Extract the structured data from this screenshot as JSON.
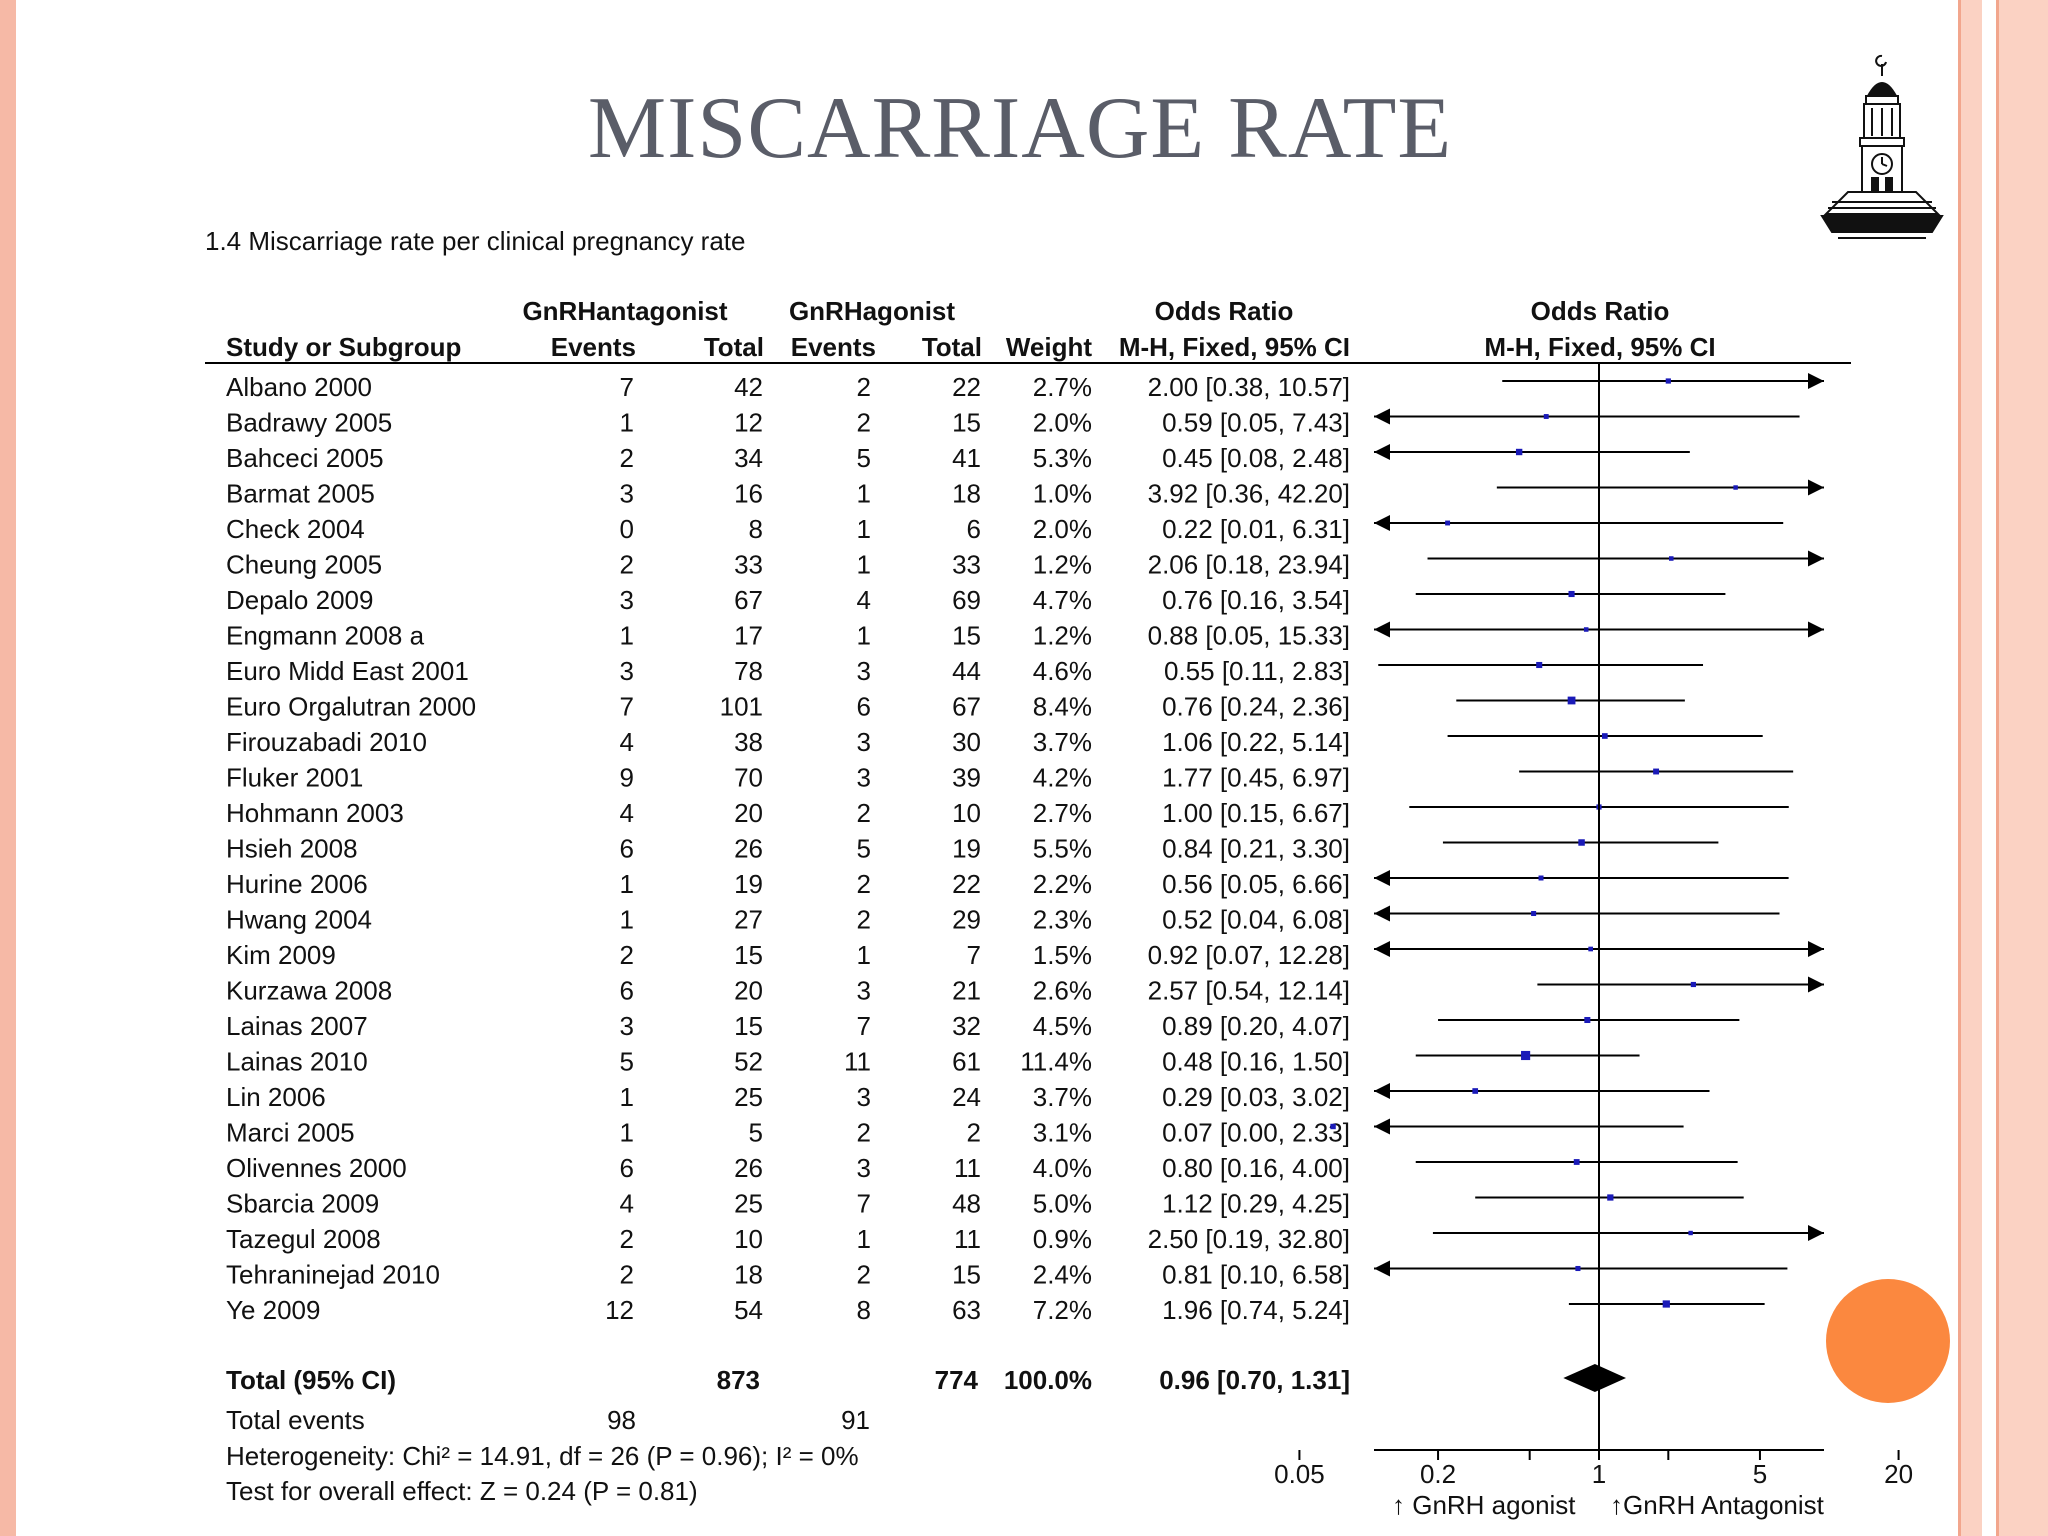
{
  "slide": {
    "title": "MISCARRIAGE RATE",
    "logo_icon": "clock-tower-icon",
    "accent_colors": {
      "left_band": "#f6b9a6",
      "right_band": "#fbd2c3",
      "dot": "#fb883f",
      "title": "#5a5d68"
    }
  },
  "chart_data": {
    "type": "forest",
    "title": "1.4 Miscarriage rate per clinical pregnancy rate",
    "headers": {
      "group1": "GnRHantagonist",
      "group2": "GnRHagonist",
      "study": "Study or Subgroup",
      "events": "Events",
      "total": "Total",
      "weight": "Weight",
      "or_title": "Odds Ratio",
      "or_method": "M-H, Fixed, 95% CI"
    },
    "studies": [
      {
        "name": "Albano 2000",
        "e1": "7",
        "t1": "42",
        "e2": "2",
        "t2": "22",
        "weight": "2.7%",
        "ci_text": "2.00 [0.38, 10.57]",
        "or": 2.0,
        "lo": 0.38,
        "hi": 10.57
      },
      {
        "name": "Badrawy 2005",
        "e1": "1",
        "t1": "12",
        "e2": "2",
        "t2": "15",
        "weight": "2.0%",
        "ci_text": "0.59 [0.05, 7.43]",
        "or": 0.59,
        "lo": 0.05,
        "hi": 7.43
      },
      {
        "name": "Bahceci 2005",
        "e1": "2",
        "t1": "34",
        "e2": "5",
        "t2": "41",
        "weight": "5.3%",
        "ci_text": "0.45 [0.08, 2.48]",
        "or": 0.45,
        "lo": 0.08,
        "hi": 2.48
      },
      {
        "name": "Barmat 2005",
        "e1": "3",
        "t1": "16",
        "e2": "1",
        "t2": "18",
        "weight": "1.0%",
        "ci_text": "3.92 [0.36, 42.20]",
        "or": 3.92,
        "lo": 0.36,
        "hi": 42.2
      },
      {
        "name": "Check 2004",
        "e1": "0",
        "t1": "8",
        "e2": "1",
        "t2": "6",
        "weight": "2.0%",
        "ci_text": "0.22 [0.01, 6.31]",
        "or": 0.22,
        "lo": 0.01,
        "hi": 6.31
      },
      {
        "name": "Cheung 2005",
        "e1": "2",
        "t1": "33",
        "e2": "1",
        "t2": "33",
        "weight": "1.2%",
        "ci_text": "2.06 [0.18, 23.94]",
        "or": 2.06,
        "lo": 0.18,
        "hi": 23.94
      },
      {
        "name": "Depalo 2009",
        "e1": "3",
        "t1": "67",
        "e2": "4",
        "t2": "69",
        "weight": "4.7%",
        "ci_text": "0.76 [0.16, 3.54]",
        "or": 0.76,
        "lo": 0.16,
        "hi": 3.54
      },
      {
        "name": "Engmann 2008 a",
        "e1": "1",
        "t1": "17",
        "e2": "1",
        "t2": "15",
        "weight": "1.2%",
        "ci_text": "0.88 [0.05, 15.33]",
        "or": 0.88,
        "lo": 0.05,
        "hi": 15.33
      },
      {
        "name": "Euro Midd East 2001",
        "e1": "3",
        "t1": "78",
        "e2": "3",
        "t2": "44",
        "weight": "4.6%",
        "ci_text": "0.55 [0.11, 2.83]",
        "or": 0.55,
        "lo": 0.11,
        "hi": 2.83
      },
      {
        "name": "Euro Orgalutran 2000",
        "e1": "7",
        "t1": "101",
        "e2": "6",
        "t2": "67",
        "weight": "8.4%",
        "ci_text": "0.76 [0.24, 2.36]",
        "or": 0.76,
        "lo": 0.24,
        "hi": 2.36
      },
      {
        "name": "Firouzabadi 2010",
        "e1": "4",
        "t1": "38",
        "e2": "3",
        "t2": "30",
        "weight": "3.7%",
        "ci_text": "1.06 [0.22, 5.14]",
        "or": 1.06,
        "lo": 0.22,
        "hi": 5.14
      },
      {
        "name": "Fluker 2001",
        "e1": "9",
        "t1": "70",
        "e2": "3",
        "t2": "39",
        "weight": "4.2%",
        "ci_text": "1.77 [0.45, 6.97]",
        "or": 1.77,
        "lo": 0.45,
        "hi": 6.97
      },
      {
        "name": "Hohmann 2003",
        "e1": "4",
        "t1": "20",
        "e2": "2",
        "t2": "10",
        "weight": "2.7%",
        "ci_text": "1.00 [0.15, 6.67]",
        "or": 1.0,
        "lo": 0.15,
        "hi": 6.67
      },
      {
        "name": "Hsieh 2008",
        "e1": "6",
        "t1": "26",
        "e2": "5",
        "t2": "19",
        "weight": "5.5%",
        "ci_text": "0.84 [0.21, 3.30]",
        "or": 0.84,
        "lo": 0.21,
        "hi": 3.3
      },
      {
        "name": "Hurine 2006",
        "e1": "1",
        "t1": "19",
        "e2": "2",
        "t2": "22",
        "weight": "2.2%",
        "ci_text": "0.56 [0.05, 6.66]",
        "or": 0.56,
        "lo": 0.05,
        "hi": 6.66
      },
      {
        "name": "Hwang 2004",
        "e1": "1",
        "t1": "27",
        "e2": "2",
        "t2": "29",
        "weight": "2.3%",
        "ci_text": "0.52 [0.04, 6.08]",
        "or": 0.52,
        "lo": 0.04,
        "hi": 6.08
      },
      {
        "name": "Kim 2009",
        "e1": "2",
        "t1": "15",
        "e2": "1",
        "t2": "7",
        "weight": "1.5%",
        "ci_text": "0.92 [0.07, 12.28]",
        "or": 0.92,
        "lo": 0.07,
        "hi": 12.28
      },
      {
        "name": "Kurzawa 2008",
        "e1": "6",
        "t1": "20",
        "e2": "3",
        "t2": "21",
        "weight": "2.6%",
        "ci_text": "2.57 [0.54, 12.14]",
        "or": 2.57,
        "lo": 0.54,
        "hi": 12.14
      },
      {
        "name": "Lainas 2007",
        "e1": "3",
        "t1": "15",
        "e2": "7",
        "t2": "32",
        "weight": "4.5%",
        "ci_text": "0.89 [0.20, 4.07]",
        "or": 0.89,
        "lo": 0.2,
        "hi": 4.07
      },
      {
        "name": "Lainas 2010",
        "e1": "5",
        "t1": "52",
        "e2": "11",
        "t2": "61",
        "weight": "11.4%",
        "ci_text": "0.48 [0.16, 1.50]",
        "or": 0.48,
        "lo": 0.16,
        "hi": 1.5
      },
      {
        "name": "Lin 2006",
        "e1": "1",
        "t1": "25",
        "e2": "3",
        "t2": "24",
        "weight": "3.7%",
        "ci_text": "0.29 [0.03, 3.02]",
        "or": 0.29,
        "lo": 0.03,
        "hi": 3.02
      },
      {
        "name": "Marci 2005",
        "e1": "1",
        "t1": "5",
        "e2": "2",
        "t2": "2",
        "weight": "3.1%",
        "ci_text": "0.07 [0.00, 2.33]",
        "or": 0.07,
        "lo": 0.0,
        "hi": 2.33
      },
      {
        "name": "Olivennes 2000",
        "e1": "6",
        "t1": "26",
        "e2": "3",
        "t2": "11",
        "weight": "4.0%",
        "ci_text": "0.80 [0.16, 4.00]",
        "or": 0.8,
        "lo": 0.16,
        "hi": 4.0
      },
      {
        "name": "Sbarcia 2009",
        "e1": "4",
        "t1": "25",
        "e2": "7",
        "t2": "48",
        "weight": "5.0%",
        "ci_text": "1.12 [0.29, 4.25]",
        "or": 1.12,
        "lo": 0.29,
        "hi": 4.25
      },
      {
        "name": "Tazegul 2008",
        "e1": "2",
        "t1": "10",
        "e2": "1",
        "t2": "11",
        "weight": "0.9%",
        "ci_text": "2.50 [0.19, 32.80]",
        "or": 2.5,
        "lo": 0.19,
        "hi": 32.8
      },
      {
        "name": "Tehraninejad 2010",
        "e1": "2",
        "t1": "18",
        "e2": "2",
        "t2": "15",
        "weight": "2.4%",
        "ci_text": "0.81 [0.10, 6.58]",
        "or": 0.81,
        "lo": 0.1,
        "hi": 6.58
      },
      {
        "name": "Ye 2009",
        "e1": "12",
        "t1": "54",
        "e2": "8",
        "t2": "63",
        "weight": "7.2%",
        "ci_text": "1.96 [0.74, 5.24]",
        "or": 1.96,
        "lo": 0.74,
        "hi": 5.24
      }
    ],
    "total": {
      "label": "Total (95% CI)",
      "t1": "873",
      "t2": "774",
      "weight": "100.0%",
      "ci_text": "0.96 [0.70, 1.31]",
      "or": 0.96,
      "lo": 0.7,
      "hi": 1.31
    },
    "total_events": {
      "label": "Total events",
      "e1": "98",
      "e2": "91"
    },
    "heterogeneity": "Heterogeneity: Chi² = 14.91, df = 26 (P = 0.96); I² = 0%",
    "overall_effect": "Test for overall effect: Z = 0.24 (P = 0.81)",
    "x_axis": {
      "scale": "log",
      "range": [
        0.02,
        50
      ],
      "ticks": [
        0.05,
        0.2,
        1,
        5,
        20
      ],
      "tick_labels": [
        "0.05",
        "0.2",
        "1",
        "5",
        "20"
      ],
      "left_label": "↑ GnRH agonist",
      "right_label": "↑GnRH Antagonist"
    },
    "colors": {
      "marker": "#1a1ab8",
      "lines": "#000000"
    }
  }
}
